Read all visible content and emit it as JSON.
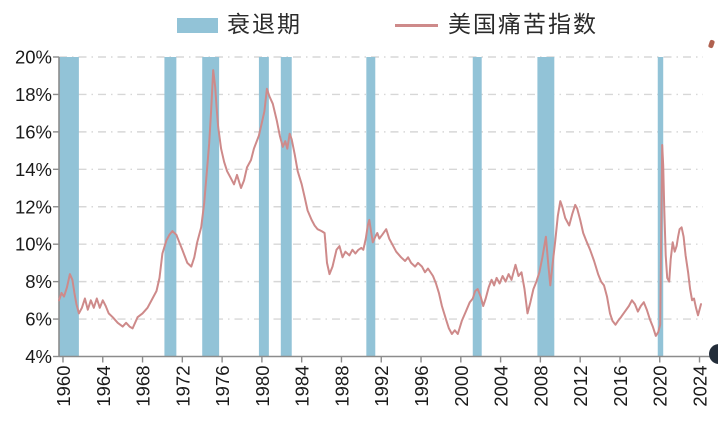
{
  "legend": {
    "recession_label": "衰退期",
    "series_label": "美国痛苦指数"
  },
  "colors": {
    "recession_band": "#92c3d7",
    "line": "#ce8a8a",
    "grid": "#d7d7d7",
    "axis": "#8c8c8c",
    "tick_text": "#1a1a1a",
    "legend_text": "#2b2b2b",
    "bottom_right_artifact": "#232d3a",
    "top_right_artifact": "#b0614f"
  },
  "chart_data": {
    "type": "line",
    "title": "",
    "xlabel": "",
    "ylabel": "",
    "grid": "horizontal dash-dot",
    "legend_position": "top",
    "xlim": [
      1959.6,
      2024.35
    ],
    "ylim": [
      4,
      20
    ],
    "x_ticks": [
      1960,
      1964,
      1968,
      1972,
      1976,
      1980,
      1984,
      1988,
      1992,
      1996,
      2000,
      2004,
      2008,
      2012,
      2016,
      2020,
      2024
    ],
    "y_ticks": [
      4,
      6,
      8,
      10,
      12,
      14,
      16,
      18,
      20
    ],
    "y_tick_suffix": "%",
    "recession_bands": [
      [
        1959.6,
        1961.6
      ],
      [
        1970.2,
        1971.4
      ],
      [
        1974.0,
        1975.7
      ],
      [
        1979.7,
        1980.7
      ],
      [
        1981.9,
        1983.0
      ],
      [
        1990.5,
        1991.4
      ],
      [
        2001.2,
        2002.1
      ],
      [
        2007.7,
        2009.4
      ],
      [
        2019.8,
        2020.35
      ]
    ],
    "series": [
      {
        "name": "美国痛苦指数",
        "points": [
          [
            1959.6,
            7.0
          ],
          [
            1959.85,
            7.4
          ],
          [
            1960.1,
            7.2
          ],
          [
            1960.4,
            7.7
          ],
          [
            1960.7,
            8.4
          ],
          [
            1960.95,
            8.1
          ],
          [
            1961.15,
            7.4
          ],
          [
            1961.35,
            6.8
          ],
          [
            1961.6,
            6.3
          ],
          [
            1961.9,
            6.6
          ],
          [
            1962.2,
            7.1
          ],
          [
            1962.5,
            6.5
          ],
          [
            1962.8,
            7.0
          ],
          [
            1963.1,
            6.6
          ],
          [
            1963.4,
            7.1
          ],
          [
            1963.7,
            6.6
          ],
          [
            1964.0,
            7.0
          ],
          [
            1964.3,
            6.7
          ],
          [
            1964.6,
            6.3
          ],
          [
            1965.0,
            6.1
          ],
          [
            1965.5,
            5.8
          ],
          [
            1966.0,
            5.6
          ],
          [
            1966.35,
            5.8
          ],
          [
            1966.7,
            5.6
          ],
          [
            1967.0,
            5.5
          ],
          [
            1967.5,
            6.1
          ],
          [
            1968.0,
            6.3
          ],
          [
            1968.5,
            6.6
          ],
          [
            1969.0,
            7.1
          ],
          [
            1969.4,
            7.5
          ],
          [
            1969.7,
            8.2
          ],
          [
            1970.0,
            9.5
          ],
          [
            1970.4,
            10.2
          ],
          [
            1970.7,
            10.5
          ],
          [
            1971.0,
            10.7
          ],
          [
            1971.4,
            10.5
          ],
          [
            1971.7,
            10.1
          ],
          [
            1972.0,
            9.7
          ],
          [
            1972.5,
            9.0
          ],
          [
            1972.9,
            8.8
          ],
          [
            1973.2,
            9.3
          ],
          [
            1973.5,
            10.1
          ],
          [
            1973.9,
            10.9
          ],
          [
            1974.2,
            12.2
          ],
          [
            1974.5,
            14.1
          ],
          [
            1974.7,
            15.4
          ],
          [
            1974.9,
            17.2
          ],
          [
            1975.1,
            19.3
          ],
          [
            1975.3,
            18.4
          ],
          [
            1975.45,
            17.3
          ],
          [
            1975.6,
            16.3
          ],
          [
            1975.9,
            15.1
          ],
          [
            1976.2,
            14.4
          ],
          [
            1976.5,
            13.9
          ],
          [
            1976.9,
            13.5
          ],
          [
            1977.2,
            13.2
          ],
          [
            1977.5,
            13.7
          ],
          [
            1977.9,
            13.0
          ],
          [
            1978.2,
            13.4
          ],
          [
            1978.5,
            14.1
          ],
          [
            1978.9,
            14.5
          ],
          [
            1979.2,
            15.1
          ],
          [
            1979.7,
            15.8
          ],
          [
            1980.0,
            16.5
          ],
          [
            1980.25,
            17.1
          ],
          [
            1980.5,
            18.3
          ],
          [
            1980.75,
            17.9
          ],
          [
            1981.1,
            17.5
          ],
          [
            1981.5,
            16.6
          ],
          [
            1981.8,
            15.8
          ],
          [
            1982.1,
            15.2
          ],
          [
            1982.35,
            15.5
          ],
          [
            1982.55,
            15.1
          ],
          [
            1982.8,
            15.9
          ],
          [
            1983.0,
            15.6
          ],
          [
            1983.3,
            14.8
          ],
          [
            1983.6,
            13.9
          ],
          [
            1984.0,
            13.2
          ],
          [
            1984.3,
            12.5
          ],
          [
            1984.6,
            11.8
          ],
          [
            1985.0,
            11.3
          ],
          [
            1985.3,
            11.0
          ],
          [
            1985.6,
            10.8
          ],
          [
            1986.0,
            10.7
          ],
          [
            1986.3,
            10.6
          ],
          [
            1986.55,
            9.0
          ],
          [
            1986.8,
            8.4
          ],
          [
            1987.1,
            8.8
          ],
          [
            1987.5,
            9.7
          ],
          [
            1987.8,
            9.9
          ],
          [
            1988.1,
            9.3
          ],
          [
            1988.4,
            9.6
          ],
          [
            1988.8,
            9.4
          ],
          [
            1989.1,
            9.7
          ],
          [
            1989.4,
            9.5
          ],
          [
            1989.7,
            9.7
          ],
          [
            1990.0,
            9.8
          ],
          [
            1990.2,
            9.7
          ],
          [
            1990.45,
            10.3
          ],
          [
            1990.65,
            11.0
          ],
          [
            1990.8,
            11.3
          ],
          [
            1991.0,
            10.6
          ],
          [
            1991.15,
            10.1
          ],
          [
            1991.4,
            10.4
          ],
          [
            1991.6,
            10.6
          ],
          [
            1991.8,
            10.3
          ],
          [
            1992.1,
            10.5
          ],
          [
            1992.5,
            10.8
          ],
          [
            1992.8,
            10.3
          ],
          [
            1993.0,
            10.1
          ],
          [
            1993.5,
            9.6
          ],
          [
            1994.0,
            9.3
          ],
          [
            1994.4,
            9.1
          ],
          [
            1994.7,
            9.3
          ],
          [
            1995.0,
            9.0
          ],
          [
            1995.4,
            8.8
          ],
          [
            1995.7,
            9.0
          ],
          [
            1996.1,
            8.8
          ],
          [
            1996.4,
            8.5
          ],
          [
            1996.7,
            8.7
          ],
          [
            1997.2,
            8.3
          ],
          [
            1997.5,
            7.9
          ],
          [
            1997.8,
            7.4
          ],
          [
            1998.1,
            6.7
          ],
          [
            1998.5,
            6.0
          ],
          [
            1998.8,
            5.5
          ],
          [
            1999.1,
            5.2
          ],
          [
            1999.4,
            5.4
          ],
          [
            1999.7,
            5.2
          ],
          [
            2000.1,
            5.9
          ],
          [
            2000.5,
            6.4
          ],
          [
            2000.9,
            6.9
          ],
          [
            2001.2,
            7.1
          ],
          [
            2001.45,
            7.5
          ],
          [
            2001.7,
            7.6
          ],
          [
            2002.0,
            7.2
          ],
          [
            2002.25,
            6.7
          ],
          [
            2002.5,
            7.1
          ],
          [
            2002.8,
            7.7
          ],
          [
            2003.1,
            8.1
          ],
          [
            2003.35,
            7.8
          ],
          [
            2003.6,
            8.2
          ],
          [
            2003.9,
            7.9
          ],
          [
            2004.2,
            8.3
          ],
          [
            2004.5,
            8.0
          ],
          [
            2004.8,
            8.4
          ],
          [
            2005.1,
            8.1
          ],
          [
            2005.5,
            8.9
          ],
          [
            2005.8,
            8.3
          ],
          [
            2006.1,
            8.5
          ],
          [
            2006.4,
            7.6
          ],
          [
            2006.7,
            6.3
          ],
          [
            2007.0,
            6.9
          ],
          [
            2007.3,
            7.6
          ],
          [
            2007.6,
            8.0
          ],
          [
            2007.9,
            8.5
          ],
          [
            2008.2,
            9.3
          ],
          [
            2008.55,
            10.4
          ],
          [
            2008.8,
            8.9
          ],
          [
            2009.0,
            7.8
          ],
          [
            2009.2,
            8.8
          ],
          [
            2009.5,
            10.2
          ],
          [
            2009.75,
            11.5
          ],
          [
            2010.0,
            12.3
          ],
          [
            2010.2,
            12.0
          ],
          [
            2010.5,
            11.4
          ],
          [
            2010.9,
            11.0
          ],
          [
            2011.2,
            11.6
          ],
          [
            2011.5,
            12.1
          ],
          [
            2011.7,
            11.9
          ],
          [
            2012.0,
            11.3
          ],
          [
            2012.3,
            10.6
          ],
          [
            2012.6,
            10.2
          ],
          [
            2013.0,
            9.7
          ],
          [
            2013.4,
            9.1
          ],
          [
            2013.8,
            8.4
          ],
          [
            2014.1,
            8.0
          ],
          [
            2014.4,
            7.8
          ],
          [
            2014.7,
            7.2
          ],
          [
            2015.0,
            6.3
          ],
          [
            2015.25,
            5.9
          ],
          [
            2015.55,
            5.7
          ],
          [
            2015.8,
            5.9
          ],
          [
            2016.1,
            6.1
          ],
          [
            2016.5,
            6.4
          ],
          [
            2016.9,
            6.7
          ],
          [
            2017.2,
            7.0
          ],
          [
            2017.5,
            6.8
          ],
          [
            2017.8,
            6.4
          ],
          [
            2018.1,
            6.7
          ],
          [
            2018.4,
            6.9
          ],
          [
            2018.7,
            6.5
          ],
          [
            2019.0,
            6.0
          ],
          [
            2019.3,
            5.6
          ],
          [
            2019.6,
            5.1
          ],
          [
            2019.85,
            5.3
          ],
          [
            2020.05,
            5.7
          ],
          [
            2020.25,
            15.3
          ],
          [
            2020.35,
            14.2
          ],
          [
            2020.45,
            12.0
          ],
          [
            2020.6,
            9.4
          ],
          [
            2020.75,
            8.2
          ],
          [
            2020.95,
            8.0
          ],
          [
            2021.1,
            9.2
          ],
          [
            2021.3,
            10.1
          ],
          [
            2021.5,
            9.6
          ],
          [
            2021.7,
            9.9
          ],
          [
            2021.85,
            10.4
          ],
          [
            2022.0,
            10.8
          ],
          [
            2022.2,
            10.9
          ],
          [
            2022.4,
            10.4
          ],
          [
            2022.6,
            9.4
          ],
          [
            2022.85,
            8.5
          ],
          [
            2023.05,
            7.6
          ],
          [
            2023.25,
            7.0
          ],
          [
            2023.45,
            7.1
          ],
          [
            2023.65,
            6.6
          ],
          [
            2023.85,
            6.2
          ],
          [
            2024.0,
            6.5
          ],
          [
            2024.15,
            6.8
          ]
        ]
      }
    ]
  }
}
